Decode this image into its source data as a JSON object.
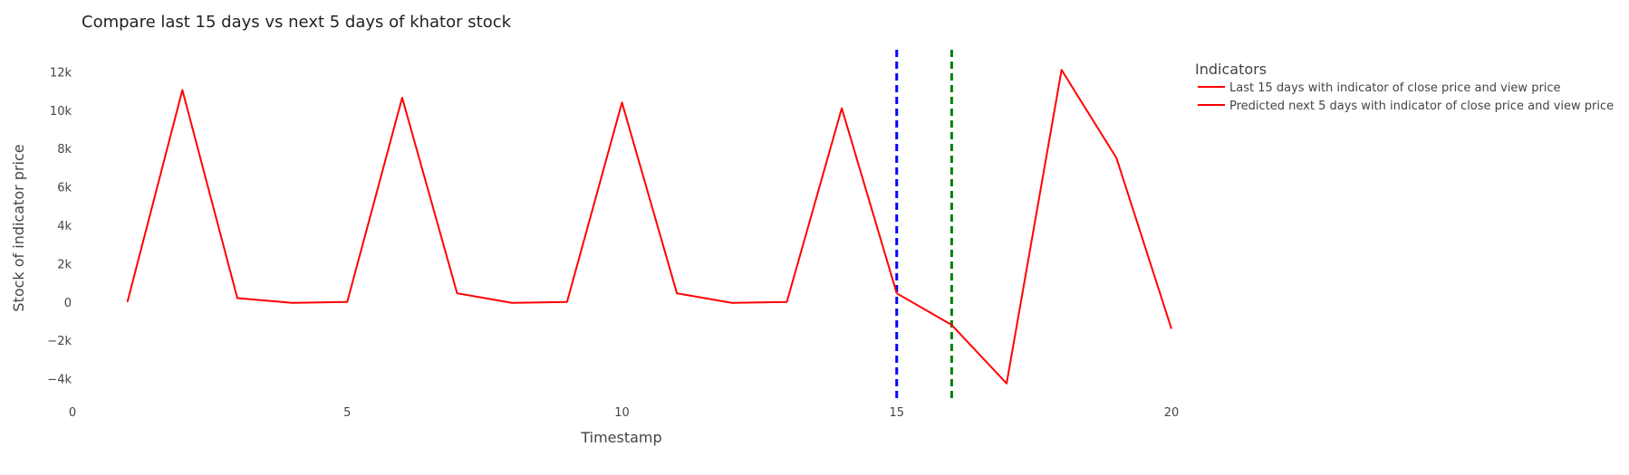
{
  "chart_data": {
    "type": "line",
    "title": "Compare last 15 days vs next 5 days of khator stock",
    "xlabel": "Timestamp",
    "ylabel": "Stock of indicator price",
    "xlim": [
      0,
      20
    ],
    "ylim": [
      -5200,
      13200
    ],
    "x_ticks": [
      0,
      5,
      10,
      15,
      20
    ],
    "x_tick_labels": [
      "0",
      "5",
      "10",
      "15",
      "20"
    ],
    "y_ticks": [
      -4000,
      -2000,
      0,
      2000,
      4000,
      6000,
      8000,
      10000,
      12000
    ],
    "y_tick_labels": [
      "−4k",
      "−2k",
      "0",
      "2k",
      "4k",
      "6k",
      "8k",
      "10k",
      "12k"
    ],
    "grid": false,
    "legend_position": "right",
    "legend_title": "Indicators",
    "series": [
      {
        "name": "Last 15 days with indicator of close price and view price",
        "color": "#ff0000",
        "x": [
          1,
          2,
          3,
          4,
          5,
          6,
          7,
          8,
          9,
          10,
          11,
          12,
          13,
          14,
          15
        ],
        "y": [
          50,
          11100,
          250,
          0,
          50,
          10700,
          500,
          0,
          50,
          10450,
          500,
          0,
          50,
          10150,
          500
        ]
      },
      {
        "name": "Predicted next 5 days with indicator of close price and view price",
        "color": "#ff0000",
        "x": [
          15,
          16,
          17,
          18,
          19,
          20
        ],
        "y": [
          500,
          -1150,
          -4200,
          12150,
          7550,
          -1350
        ]
      }
    ],
    "vlines": [
      {
        "x": 15,
        "color": "#0000ff",
        "dash": "dashed"
      },
      {
        "x": 16,
        "color": "#008000",
        "dash": "dashed"
      }
    ]
  }
}
